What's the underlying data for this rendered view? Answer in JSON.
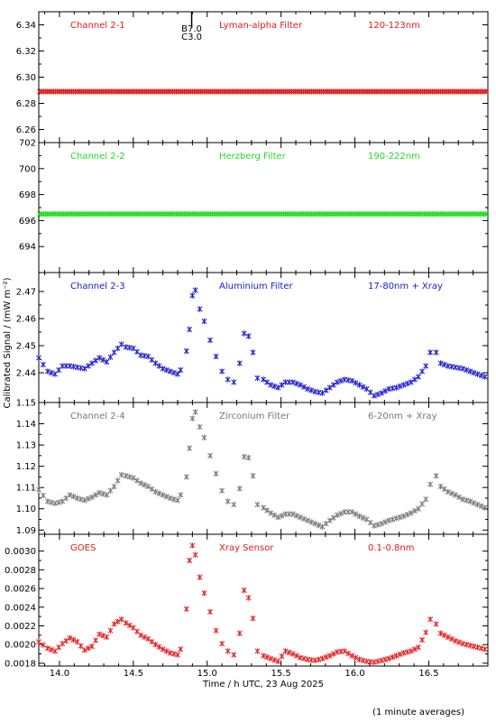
{
  "chart_data": [
    {
      "type": "scatter",
      "panel": "Channel 2-1",
      "texts": [
        "Channel 2-1",
        "Lyman-alpha Filter",
        "120-123nm"
      ],
      "color": "#e11a1a",
      "ylim": [
        6.25,
        6.35
      ],
      "yticks": [
        "6.26",
        "6.28",
        "6.30",
        "6.32",
        "6.34"
      ],
      "ytick_values": [
        6.26,
        6.28,
        6.3,
        6.32,
        6.34
      ],
      "annotation": {
        "x": 14.895,
        "labels": [
          "B7.0",
          "C3.0"
        ]
      },
      "series": [
        {
          "x": [
            13.86,
            16.9
          ],
          "y": [
            6.289,
            6.289
          ]
        }
      ]
    },
    {
      "type": "scatter",
      "panel": "Channel 2-2",
      "texts": [
        "Channel 2-2",
        "Herzberg Filter",
        "190-222nm"
      ],
      "color": "#22dd22",
      "ylim": [
        692,
        702
      ],
      "yticks": [
        "694",
        "696",
        "698",
        "700",
        "702"
      ],
      "ytick_values": [
        694,
        696,
        698,
        700,
        702
      ],
      "series": [
        {
          "x": [
            13.86,
            16.9
          ],
          "y": [
            696.5,
            696.5
          ]
        }
      ]
    },
    {
      "type": "scatter",
      "panel": "Channel 2-3",
      "texts": [
        "Channel 2-3",
        "Aluminium Filter",
        "17-80nm + Xray"
      ],
      "color": "#1a1acc",
      "ylim": [
        2.429,
        2.477
      ],
      "yticks": [
        "2.44",
        "2.45",
        "2.46",
        "2.47"
      ],
      "ytick_values": [
        2.44,
        2.45,
        2.46,
        2.47
      ],
      "series": [
        {
          "x": [
            13.86,
            13.92,
            13.97,
            14.02,
            14.07,
            14.12,
            14.17,
            14.22,
            14.27,
            14.32,
            14.37,
            14.42,
            14.45,
            14.5,
            14.55,
            14.6,
            14.65,
            14.7,
            14.75,
            14.8,
            14.82,
            14.86,
            14.88,
            14.9,
            14.92,
            14.95,
            14.98,
            15.02,
            15.06,
            15.1,
            15.14,
            15.18,
            15.22,
            15.25,
            15.28,
            15.31,
            15.34,
            15.38,
            15.43,
            15.48,
            15.53,
            15.58,
            15.63,
            15.68,
            15.73,
            15.78,
            15.83,
            15.88,
            15.93,
            15.98,
            16.03,
            16.08,
            16.13,
            16.18,
            16.23,
            16.28,
            16.33,
            16.38,
            16.43,
            16.48,
            16.51,
            16.55,
            16.58,
            16.63,
            16.68,
            16.73,
            16.78,
            16.83,
            16.88
          ],
          "y": [
            2.4455,
            2.4405,
            2.4395,
            2.4425,
            2.4425,
            2.442,
            2.4415,
            2.4435,
            2.4455,
            2.444,
            2.4475,
            2.4505,
            2.4495,
            2.449,
            2.4465,
            2.446,
            2.4435,
            2.4415,
            2.4405,
            2.4395,
            2.441,
            2.448,
            2.456,
            2.4685,
            2.4705,
            2.4635,
            2.459,
            2.452,
            2.446,
            2.4405,
            2.4375,
            2.4365,
            2.4435,
            2.4545,
            2.4535,
            2.4475,
            2.438,
            2.4375,
            2.4355,
            2.4345,
            2.4365,
            2.4365,
            2.4355,
            2.434,
            2.433,
            2.4325,
            2.4345,
            2.4365,
            2.4375,
            2.437,
            2.4355,
            2.434,
            2.4315,
            2.4325,
            2.434,
            2.4345,
            2.4355,
            2.4365,
            2.4385,
            2.4425,
            2.4475,
            2.4475,
            2.4435,
            2.4425,
            2.442,
            2.4415,
            2.4405,
            2.4395,
            2.4385
          ]
        }
      ]
    },
    {
      "type": "scatter",
      "panel": "Channel 2-4",
      "texts": [
        "Channel 2-4",
        "Zirconium Filter",
        "6-20nm + Xray"
      ],
      "color": "#777777",
      "ylim": [
        1.088,
        1.15
      ],
      "yticks": [
        "1.09",
        "1.10",
        "1.11",
        "1.12",
        "1.13",
        "1.14",
        "1.15"
      ],
      "ytick_values": [
        1.09,
        1.1,
        1.11,
        1.12,
        1.13,
        1.14,
        1.15
      ],
      "series": [
        {
          "x": [
            13.86,
            13.92,
            13.97,
            14.02,
            14.07,
            14.12,
            14.17,
            14.22,
            14.27,
            14.32,
            14.37,
            14.42,
            14.45,
            14.5,
            14.55,
            14.6,
            14.65,
            14.7,
            14.75,
            14.8,
            14.82,
            14.86,
            14.88,
            14.9,
            14.92,
            14.95,
            14.98,
            15.02,
            15.06,
            15.1,
            15.14,
            15.18,
            15.22,
            15.25,
            15.28,
            15.31,
            15.34,
            15.38,
            15.43,
            15.48,
            15.53,
            15.58,
            15.63,
            15.68,
            15.73,
            15.78,
            15.83,
            15.88,
            15.93,
            15.98,
            16.03,
            16.08,
            16.13,
            16.18,
            16.23,
            16.28,
            16.33,
            16.38,
            16.43,
            16.48,
            16.51,
            16.55,
            16.58,
            16.63,
            16.68,
            16.73,
            16.78,
            16.83,
            16.88
          ],
          "y": [
            1.109,
            1.1035,
            1.1025,
            1.1035,
            1.1065,
            1.105,
            1.104,
            1.1055,
            1.1075,
            1.1065,
            1.1105,
            1.116,
            1.1155,
            1.1145,
            1.112,
            1.1105,
            1.108,
            1.1065,
            1.105,
            1.104,
            1.1065,
            1.115,
            1.1285,
            1.1425,
            1.1455,
            1.1385,
            1.1335,
            1.125,
            1.1165,
            1.1085,
            1.1035,
            1.102,
            1.1095,
            1.1245,
            1.124,
            1.1155,
            1.102,
            1.1005,
            1.098,
            1.096,
            1.0975,
            1.0975,
            1.096,
            1.0945,
            1.093,
            1.0915,
            1.0945,
            1.097,
            1.0985,
            1.0985,
            1.0965,
            1.095,
            1.092,
            1.093,
            1.0945,
            1.0955,
            1.0965,
            1.098,
            1.1,
            1.1045,
            1.1115,
            1.1155,
            1.1105,
            1.108,
            1.1065,
            1.1045,
            1.1035,
            1.102,
            1.1005
          ]
        }
      ]
    },
    {
      "type": "scatter",
      "panel": "GOES",
      "texts": [
        "GOES",
        "Xray Sensor",
        "0.1-0.8nm"
      ],
      "color": "#e11a1a",
      "ylim": [
        0.00177,
        0.00318
      ],
      "yticks": [
        "0.0018",
        "0.0020",
        "0.0022",
        "0.0024",
        "0.0026",
        "0.0028",
        "0.0030"
      ],
      "ytick_values": [
        0.0018,
        0.002,
        0.0022,
        0.0024,
        0.0026,
        0.0028,
        0.003
      ],
      "series": [
        {
          "x": [
            13.86,
            13.92,
            13.97,
            14.02,
            14.07,
            14.12,
            14.17,
            14.22,
            14.27,
            14.32,
            14.37,
            14.42,
            14.45,
            14.5,
            14.55,
            14.6,
            14.65,
            14.7,
            14.75,
            14.8,
            14.82,
            14.86,
            14.88,
            14.9,
            14.92,
            14.95,
            14.98,
            15.02,
            15.06,
            15.1,
            15.14,
            15.18,
            15.22,
            15.25,
            15.28,
            15.31,
            15.34,
            15.38,
            15.43,
            15.48,
            15.53,
            15.58,
            15.63,
            15.68,
            15.73,
            15.78,
            15.83,
            15.88,
            15.93,
            15.98,
            16.03,
            16.08,
            16.13,
            16.18,
            16.23,
            16.28,
            16.33,
            16.38,
            16.43,
            16.48,
            16.51,
            16.55,
            16.58,
            16.63,
            16.68,
            16.73,
            16.78,
            16.83,
            16.88
          ],
          "y": [
            0.00203,
            0.00196,
            0.00193,
            0.00201,
            0.00207,
            0.00203,
            0.00194,
            0.00198,
            0.00211,
            0.00208,
            0.00222,
            0.00227,
            0.00223,
            0.00218,
            0.0021,
            0.00206,
            0.002,
            0.00195,
            0.00191,
            0.00189,
            0.00195,
            0.00238,
            0.0029,
            0.00306,
            0.00296,
            0.00272,
            0.00255,
            0.00235,
            0.00215,
            0.00201,
            0.00193,
            0.00189,
            0.00212,
            0.00258,
            0.0025,
            0.00228,
            0.00193,
            0.00188,
            0.00185,
            0.00182,
            0.00193,
            0.0019,
            0.00186,
            0.00184,
            0.00183,
            0.00185,
            0.00188,
            0.00192,
            0.00193,
            0.00188,
            0.00184,
            0.00182,
            0.00181,
            0.00183,
            0.00185,
            0.00188,
            0.00191,
            0.00193,
            0.00197,
            0.00213,
            0.00227,
            0.00222,
            0.00212,
            0.00208,
            0.00204,
            0.00201,
            0.00199,
            0.00197,
            0.00195
          ]
        }
      ]
    }
  ],
  "xaxis": {
    "label": "Time / h UTC, 23 Aug 2025",
    "xlim": [
      13.86,
      16.9
    ],
    "ticks": [
      "14.0",
      "14.5",
      "15.0",
      "15.5",
      "16.0",
      "16.5"
    ],
    "tick_values": [
      14.0,
      14.5,
      15.0,
      15.5,
      16.0,
      16.5
    ]
  },
  "yaxis_label": "Calibrated Signal / (mW m⁻²)",
  "footnote": "(1 minute averages)"
}
